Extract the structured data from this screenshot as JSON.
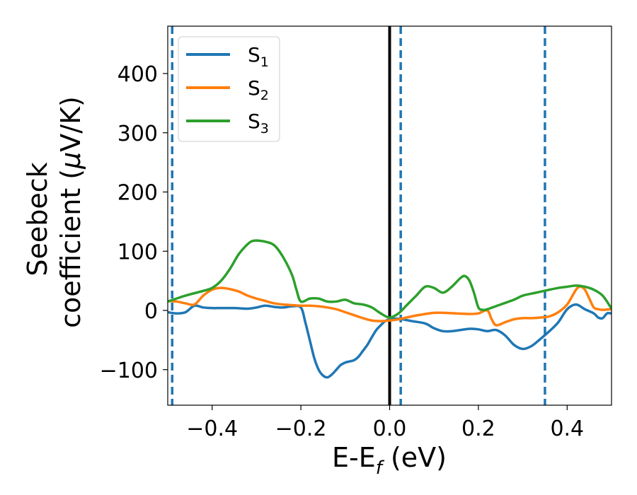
{
  "chart_data": {
    "type": "line",
    "xlabel": "E-E",
    "xlabel_sub": "f",
    "xlabel_unit": " (eV)",
    "ylabel_line1": "Seebeck",
    "ylabel_line2": "coefficient  (",
    "ylabel_mu": "μ",
    "ylabel_unit": "V/K)",
    "xlim": [
      -0.5,
      0.5
    ],
    "ylim": [
      -160,
      480
    ],
    "xticks": [
      -0.4,
      -0.2,
      0.0,
      0.2,
      0.4
    ],
    "xtick_labels": [
      "−0.4",
      "−0.2",
      "0.0",
      "0.2",
      "0.4"
    ],
    "yticks": [
      -100,
      0,
      100,
      200,
      300,
      400
    ],
    "ytick_labels": [
      "−100",
      "0",
      "100",
      "200",
      "300",
      "400"
    ],
    "grid": false,
    "legend_position": "top-left",
    "vertical_lines": [
      {
        "x": 0.0,
        "style": "solid",
        "color": "#000000"
      },
      {
        "x": -0.49,
        "style": "dashed",
        "color": "#1f77b4"
      },
      {
        "x": 0.025,
        "style": "dashed",
        "color": "#1f77b4"
      },
      {
        "x": 0.35,
        "style": "dashed",
        "color": "#1f77b4"
      }
    ],
    "series": [
      {
        "name": "S",
        "sub": "1",
        "color": "#1f77b4",
        "x": [
          -0.5,
          -0.48,
          -0.46,
          -0.44,
          -0.42,
          -0.4,
          -0.38,
          -0.35,
          -0.32,
          -0.3,
          -0.28,
          -0.26,
          -0.24,
          -0.22,
          -0.2,
          -0.19,
          -0.18,
          -0.17,
          -0.16,
          -0.15,
          -0.14,
          -0.13,
          -0.12,
          -0.11,
          -0.1,
          -0.09,
          -0.08,
          -0.07,
          -0.06,
          -0.05,
          -0.04,
          -0.03,
          -0.02,
          -0.01,
          0.0,
          0.02,
          0.05,
          0.08,
          0.1,
          0.12,
          0.14,
          0.16,
          0.18,
          0.2,
          0.22,
          0.24,
          0.26,
          0.28,
          0.3,
          0.32,
          0.34,
          0.36,
          0.38,
          0.4,
          0.42,
          0.44,
          0.46,
          0.47,
          0.48,
          0.49,
          0.5
        ],
        "y": [
          -3,
          -5,
          -3,
          8,
          5,
          4,
          4,
          4,
          3,
          5,
          8,
          6,
          5,
          7,
          5,
          -20,
          -50,
          -80,
          -100,
          -110,
          -113,
          -108,
          -100,
          -92,
          -88,
          -86,
          -84,
          -78,
          -68,
          -58,
          -45,
          -33,
          -25,
          -18,
          -15,
          -14,
          -18,
          -22,
          -30,
          -35,
          -35,
          -33,
          -31,
          -32,
          -35,
          -33,
          -42,
          -58,
          -65,
          -60,
          -48,
          -35,
          -20,
          2,
          10,
          2,
          -5,
          -12,
          -13,
          -5,
          -5
        ]
      },
      {
        "name": "S",
        "sub": "2",
        "color": "#ff7f0e",
        "x": [
          -0.5,
          -0.48,
          -0.46,
          -0.44,
          -0.42,
          -0.4,
          -0.38,
          -0.36,
          -0.34,
          -0.32,
          -0.3,
          -0.28,
          -0.26,
          -0.24,
          -0.22,
          -0.2,
          -0.18,
          -0.16,
          -0.14,
          -0.12,
          -0.1,
          -0.08,
          -0.06,
          -0.04,
          -0.02,
          0.0,
          0.02,
          0.05,
          0.08,
          0.1,
          0.12,
          0.15,
          0.18,
          0.2,
          0.22,
          0.23,
          0.24,
          0.26,
          0.28,
          0.3,
          0.32,
          0.34,
          0.36,
          0.38,
          0.4,
          0.42,
          0.43,
          0.44,
          0.45,
          0.46,
          0.47,
          0.48,
          0.5
        ],
        "y": [
          16,
          15,
          12,
          10,
          25,
          35,
          38,
          36,
          32,
          25,
          20,
          16,
          12,
          10,
          9,
          8,
          8,
          7,
          5,
          2,
          -3,
          -8,
          -13,
          -17,
          -18,
          -17,
          -15,
          -10,
          -6,
          -4,
          -4,
          -5,
          -6,
          -5,
          0,
          -15,
          -25,
          -20,
          -15,
          -13,
          -13,
          -12,
          -10,
          -3,
          10,
          35,
          40,
          35,
          20,
          5,
          2,
          1,
          2
        ]
      },
      {
        "name": "S",
        "sub": "3",
        "color": "#2ca02c",
        "x": [
          -0.5,
          -0.46,
          -0.42,
          -0.4,
          -0.38,
          -0.36,
          -0.34,
          -0.32,
          -0.31,
          -0.3,
          -0.28,
          -0.26,
          -0.24,
          -0.22,
          -0.21,
          -0.2,
          -0.18,
          -0.16,
          -0.14,
          -0.12,
          -0.1,
          -0.08,
          -0.06,
          -0.04,
          -0.02,
          0.0,
          0.02,
          0.04,
          0.06,
          0.08,
          0.1,
          0.12,
          0.14,
          0.16,
          0.17,
          0.18,
          0.19,
          0.2,
          0.21,
          0.22,
          0.25,
          0.28,
          0.3,
          0.33,
          0.36,
          0.38,
          0.4,
          0.42,
          0.44,
          0.46,
          0.48,
          0.5
        ],
        "y": [
          15,
          25,
          33,
          38,
          50,
          70,
          95,
          112,
          117,
          118,
          116,
          110,
          90,
          60,
          35,
          15,
          20,
          20,
          15,
          15,
          18,
          12,
          10,
          5,
          -5,
          -12,
          -5,
          10,
          25,
          40,
          38,
          30,
          40,
          55,
          58,
          50,
          30,
          5,
          1,
          2,
          10,
          18,
          25,
          30,
          35,
          38,
          40,
          42,
          40,
          35,
          25,
          3
        ]
      }
    ]
  }
}
